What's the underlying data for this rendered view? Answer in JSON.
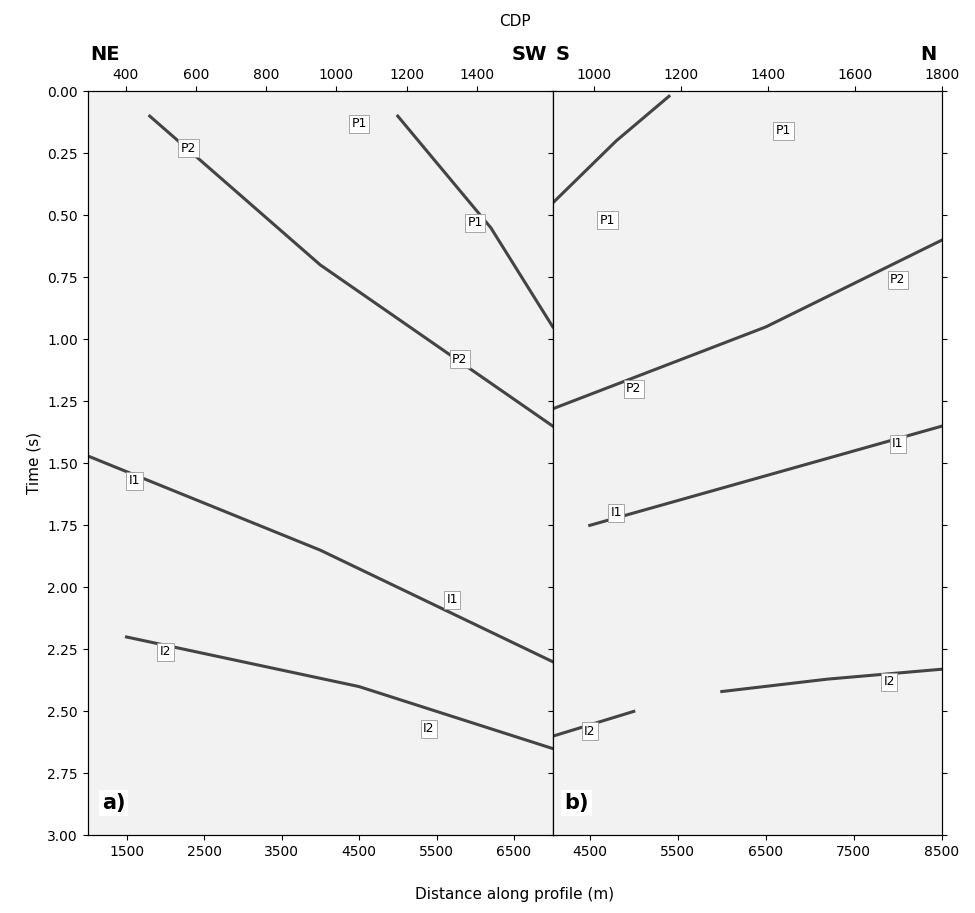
{
  "figure": {
    "x2label": "CDP",
    "xlabel": "Distance along profile (m)",
    "ylabel": "Time (s)"
  },
  "chart_data": [
    {
      "type": "line",
      "panel_label": "a)",
      "direction_left": "NE",
      "direction_right": "SW",
      "xlim": [
        1000,
        7000
      ],
      "xticks": [
        1500,
        2500,
        3500,
        4500,
        5500,
        6500
      ],
      "x2lim": [
        292,
        1616
      ],
      "x2ticks": [
        400,
        600,
        800,
        1000,
        1200,
        1400
      ],
      "ylim": [
        3.0,
        0.0
      ],
      "yticks": [
        {
          "value": 0.0,
          "label": "0.00"
        },
        {
          "value": 0.25,
          "label": "0.25"
        },
        {
          "value": 0.5,
          "label": "0.50"
        },
        {
          "value": 0.75,
          "label": "0.75"
        },
        {
          "value": 1.0,
          "label": "1.00"
        },
        {
          "value": 1.25,
          "label": "1.25"
        },
        {
          "value": 1.5,
          "label": "1.50"
        },
        {
          "value": 1.75,
          "label": "1.75"
        },
        {
          "value": 2.0,
          "label": "2.00"
        },
        {
          "value": 2.25,
          "label": "2.25"
        },
        {
          "value": 2.5,
          "label": "2.50"
        },
        {
          "value": 2.75,
          "label": "2.75"
        },
        {
          "value": 3.0,
          "label": "3.00"
        }
      ],
      "tick_labels": true,
      "series": [
        {
          "color": "#444444",
          "x": [
            1800,
            4000,
            7000
          ],
          "values": [
            0.1,
            0.7,
            1.35
          ]
        },
        {
          "color": "#444444",
          "x": [
            5000,
            6200,
            7000
          ],
          "values": [
            0.1,
            0.55,
            0.95
          ]
        },
        {
          "color": "#444444",
          "x": [
            1000,
            4000,
            7000
          ],
          "values": [
            1.47,
            1.85,
            2.3
          ]
        },
        {
          "color": "#444444",
          "x": [
            1500,
            4500,
            7000
          ],
          "values": [
            2.2,
            2.4,
            2.65
          ]
        }
      ],
      "annotations": [
        {
          "text": "P1",
          "x": 4500,
          "y": 0.13
        },
        {
          "text": "P2",
          "x": 2300,
          "y": 0.23
        },
        {
          "text": "P1",
          "x": 6000,
          "y": 0.53
        },
        {
          "text": "P2",
          "x": 5800,
          "y": 1.08
        },
        {
          "text": "I1",
          "x": 1600,
          "y": 1.57
        },
        {
          "text": "I1",
          "x": 5700,
          "y": 2.05
        },
        {
          "text": "I2",
          "x": 2000,
          "y": 2.26
        },
        {
          "text": "I2",
          "x": 5400,
          "y": 2.57
        }
      ]
    },
    {
      "type": "line",
      "panel_label": "b)",
      "direction_left": "S",
      "direction_right": "N",
      "xlim": [
        4080,
        8500
      ],
      "xticks": [
        4500,
        5500,
        6500,
        7500,
        8500
      ],
      "x2lim": [
        905,
        1800
      ],
      "x2ticks": [
        1000,
        1200,
        1400,
        1600,
        1800
      ],
      "ylim": [
        3.0,
        0.0
      ],
      "yticks": [
        {
          "value": 0.0,
          "label": "0.00"
        },
        {
          "value": 0.25,
          "label": "0.25"
        },
        {
          "value": 0.5,
          "label": "0.50"
        },
        {
          "value": 0.75,
          "label": "0.75"
        },
        {
          "value": 1.0,
          "label": "1.00"
        },
        {
          "value": 1.25,
          "label": "1.25"
        },
        {
          "value": 1.5,
          "label": "1.50"
        },
        {
          "value": 1.75,
          "label": "1.75"
        },
        {
          "value": 2.0,
          "label": "2.00"
        },
        {
          "value": 2.25,
          "label": "2.25"
        },
        {
          "value": 2.5,
          "label": "2.50"
        },
        {
          "value": 2.75,
          "label": "2.75"
        },
        {
          "value": 3.0,
          "label": "3.00"
        }
      ],
      "tick_labels": "x",
      "series": [
        {
          "color": "#444444",
          "x": [
            4080,
            4800,
            5400
          ],
          "values": [
            0.45,
            0.2,
            0.02
          ]
        },
        {
          "color": "#444444",
          "x": [
            4080,
            6500,
            8500
          ],
          "values": [
            1.28,
            0.95,
            0.6
          ]
        },
        {
          "color": "#444444",
          "x": [
            4500,
            6500,
            8500
          ],
          "values": [
            1.75,
            1.55,
            1.35
          ]
        },
        {
          "color": "#444444",
          "x": [
            6000,
            7200,
            8500
          ],
          "values": [
            2.42,
            2.37,
            2.33
          ]
        },
        {
          "color": "#444444",
          "x": [
            4080,
            5000
          ],
          "values": [
            2.6,
            2.5
          ]
        }
      ],
      "annotations": [
        {
          "text": "P1",
          "x": 6700,
          "y": 0.16
        },
        {
          "text": "P1",
          "x": 4700,
          "y": 0.52
        },
        {
          "text": "P2",
          "x": 8000,
          "y": 0.76
        },
        {
          "text": "P2",
          "x": 5000,
          "y": 1.2
        },
        {
          "text": "I1",
          "x": 8000,
          "y": 1.42
        },
        {
          "text": "I1",
          "x": 4800,
          "y": 1.7
        },
        {
          "text": "I2",
          "x": 7900,
          "y": 2.38
        },
        {
          "text": "I2",
          "x": 4500,
          "y": 2.58
        }
      ]
    }
  ]
}
